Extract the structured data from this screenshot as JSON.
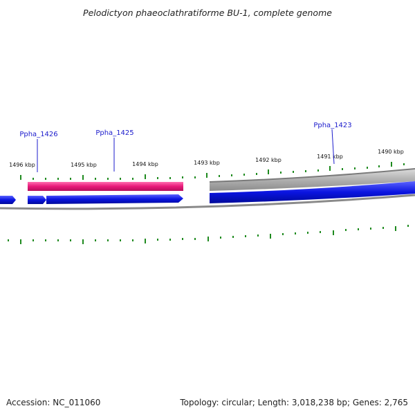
{
  "title": "Pelodictyon phaeoclathratiforme BU-1, complete genome",
  "footer": {
    "accession": "Accession: NC_011060",
    "summary": "Topology: circular; Length: 3,018,238 bp; Genes: 2,765"
  },
  "kbp_labels": [
    "1496 kbp",
    "1495 kbp",
    "1494 kbp",
    "1493 kbp",
    "1492 kbp",
    "1491 kbp",
    "1490 kbp"
  ],
  "gene_labels": [
    "Ppha_1426",
    "Ppha_1425",
    "Ppha_1423"
  ],
  "colors": {
    "forward_pink": "#e8197a",
    "forward_gray": "#b0b0b0",
    "reverse_blue": "#0a14e0",
    "backbone": "#8a8a8a",
    "tick_green": "#1e8a1e",
    "gene_label": "#1a1acc"
  }
}
